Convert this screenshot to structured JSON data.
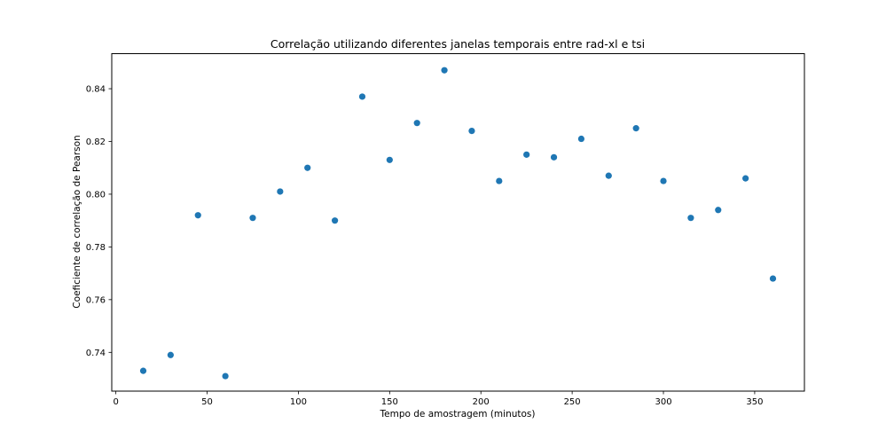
{
  "chart_data": {
    "type": "scatter",
    "title": "Correlação utilizando diferentes janelas temporais entre rad-xl e tsi",
    "xlabel": "Tempo de amostragem (minutos)",
    "ylabel": "Coeficiente de correlação de Pearson",
    "xlim": [
      -2.25,
      377.25
    ],
    "ylim": [
      0.7253,
      0.8533
    ],
    "xticks": [
      0,
      50,
      100,
      150,
      200,
      250,
      300,
      350
    ],
    "yticks": [
      0.74,
      0.76,
      0.78,
      0.8,
      0.82,
      0.84
    ],
    "xtick_labels": [
      "0",
      "50",
      "100",
      "150",
      "200",
      "250",
      "300",
      "350"
    ],
    "ytick_labels": [
      "0.74",
      "0.76",
      "0.78",
      "0.80",
      "0.82",
      "0.84"
    ],
    "grid": false,
    "marker_color": "#1f77b4",
    "x": [
      15,
      30,
      45,
      60,
      75,
      90,
      105,
      120,
      135,
      150,
      165,
      180,
      195,
      210,
      225,
      240,
      255,
      270,
      285,
      300,
      315,
      330,
      345,
      360
    ],
    "y": [
      0.733,
      0.739,
      0.792,
      0.731,
      0.791,
      0.801,
      0.81,
      0.79,
      0.837,
      0.813,
      0.827,
      0.847,
      0.824,
      0.805,
      0.815,
      0.814,
      0.821,
      0.807,
      0.825,
      0.805,
      0.791,
      0.794,
      0.806,
      0.768
    ]
  }
}
